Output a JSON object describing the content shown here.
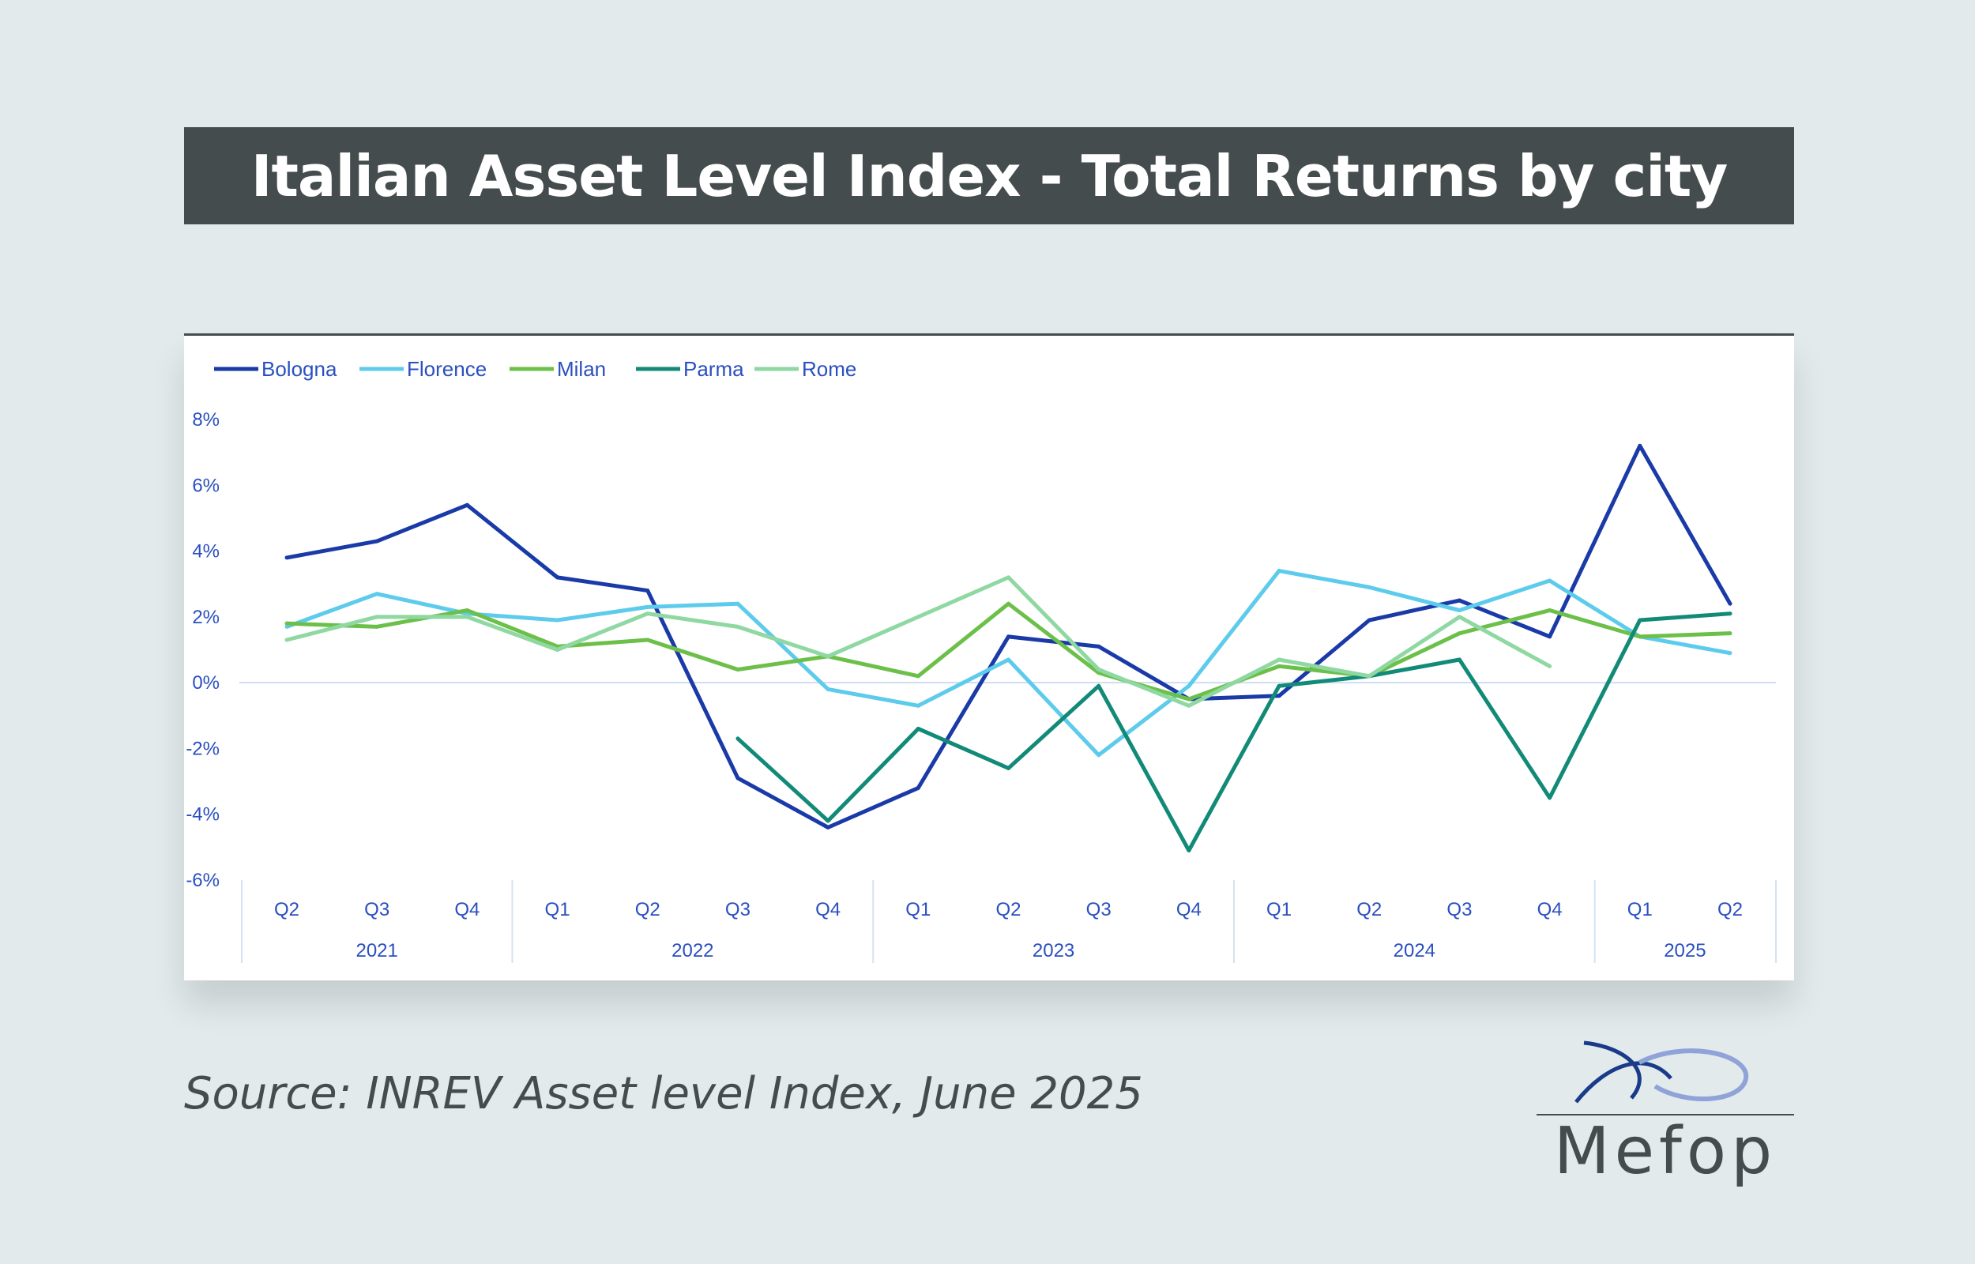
{
  "title": "Italian Asset Level Index - Total Returns by city",
  "source": "Source: INREV Asset level Index, June 2025",
  "logo": {
    "text": "Mefop",
    "icon": "fish-swirl-logo"
  },
  "chart_data": {
    "type": "line",
    "title": "",
    "xlabel": "",
    "ylabel": "",
    "ylim": [
      -6,
      8
    ],
    "y_ticks": [
      8,
      6,
      4,
      2,
      0,
      -2,
      -4,
      -6
    ],
    "y_tick_labels": [
      "8%",
      "6%",
      "4%",
      "2%",
      "0%",
      "-2%",
      "-4%",
      "-6%"
    ],
    "categories": [
      "Q2",
      "Q3",
      "Q4",
      "Q1",
      "Q2",
      "Q3",
      "Q4",
      "Q1",
      "Q2",
      "Q3",
      "Q4",
      "Q1",
      "Q2",
      "Q3",
      "Q4",
      "Q1",
      "Q2"
    ],
    "year_groups": [
      {
        "label": "2021",
        "count": 3
      },
      {
        "label": "2022",
        "count": 4
      },
      {
        "label": "2023",
        "count": 4
      },
      {
        "label": "2024",
        "count": 4
      },
      {
        "label": "2025",
        "count": 2
      }
    ],
    "legend_position": "top-left",
    "grid": false,
    "series": [
      {
        "name": "Bologna",
        "color": "#1a3aa8",
        "values": [
          3.8,
          4.3,
          5.4,
          3.2,
          2.8,
          -2.9,
          -4.4,
          -3.2,
          1.4,
          1.1,
          -0.5,
          -0.4,
          1.9,
          2.5,
          1.4,
          7.2,
          2.4
        ]
      },
      {
        "name": "Florence",
        "color": "#5dcbeb",
        "values": [
          1.7,
          2.7,
          2.1,
          1.9,
          2.3,
          2.4,
          -0.2,
          -0.7,
          0.7,
          -2.2,
          -0.1,
          3.4,
          2.9,
          2.2,
          3.1,
          1.4,
          0.9
        ]
      },
      {
        "name": "Milan",
        "color": "#6cc04a",
        "values": [
          1.8,
          1.7,
          2.2,
          1.1,
          1.3,
          0.4,
          0.8,
          0.2,
          2.4,
          0.3,
          -0.5,
          0.5,
          0.2,
          1.5,
          2.2,
          1.4,
          1.5
        ]
      },
      {
        "name": "Parma",
        "color": "#128a78",
        "values": [
          null,
          null,
          null,
          null,
          null,
          -1.7,
          -4.2,
          -1.4,
          -2.6,
          -0.1,
          -5.1,
          -0.1,
          0.2,
          0.7,
          -3.5,
          1.9,
          2.1
        ]
      },
      {
        "name": "Rome",
        "color": "#8fd8a2",
        "values": [
          1.3,
          2.0,
          2.0,
          1.0,
          2.1,
          1.7,
          0.8,
          2.0,
          3.2,
          0.4,
          -0.7,
          0.7,
          0.2,
          2.0,
          0.5,
          null,
          null
        ]
      }
    ]
  }
}
